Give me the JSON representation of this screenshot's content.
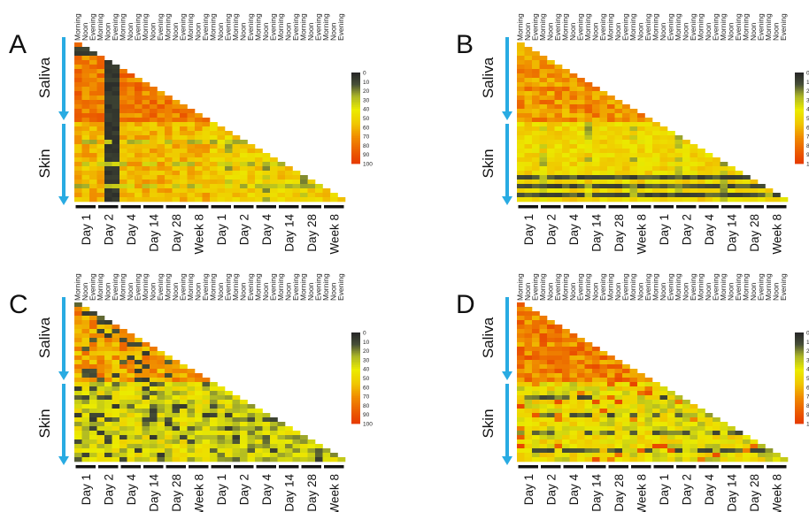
{
  "figure": {
    "panels": [
      {
        "letter": "A",
        "scale_max_visible_label": "100",
        "variant": "A"
      },
      {
        "letter": "B",
        "scale_max_visible_label": "10",
        "variant": "B"
      },
      {
        "letter": "C",
        "scale_max_visible_label": "100",
        "variant": "C"
      },
      {
        "letter": "D",
        "scale_max_visible_label": "10",
        "variant": "D"
      }
    ],
    "group_labels": {
      "saliva": "Saliva",
      "skin": "Skin"
    },
    "column_labels": [
      "Morning",
      "Noon",
      "Evening",
      "Morning",
      "Noon",
      "Evening",
      "Morning",
      "Noon",
      "Evening",
      "Morning",
      "Noon",
      "Evening",
      "Morning",
      "Noon",
      "Evening",
      "Morning",
      "Noon",
      "Evening",
      "Morning",
      "Noon",
      "Evening",
      "Morning",
      "Noon",
      "Evening",
      "Morning",
      "Noon",
      "Evening",
      "Morning",
      "Noon",
      "Evening",
      "Morning",
      "Noon",
      "Evening",
      "Morning",
      "Noon",
      "Evening"
    ],
    "day_labels": [
      "Day 1",
      "Day 2",
      "Day 4",
      "Day 14",
      "Day 28",
      "Week 8",
      "Day 1",
      "Day 2",
      "Day 4",
      "Day 14",
      "Day 28",
      "Week 8"
    ],
    "colorbar_ticks": [
      "0",
      "10",
      "20",
      "30",
      "40",
      "50",
      "60",
      "70",
      "80",
      "90",
      "100"
    ]
  },
  "chart_data": [
    {
      "type": "heatmap",
      "panel": "A",
      "title": "",
      "row_groups": [
        "Saliva",
        "Skin"
      ],
      "columns": 36,
      "color_scale": {
        "min": 0,
        "max": 100,
        "low_color": "#1a1a1a",
        "mid_color": "#e6e600",
        "high_color": "#e63900"
      },
      "note_highlight": "Day 2 Morning column near 0"
    },
    {
      "type": "heatmap",
      "panel": "B",
      "title": "",
      "row_groups": [
        "Saliva",
        "Skin"
      ],
      "columns": 36,
      "color_scale": {
        "min": 0,
        "max": 100,
        "low_color": "#1a1a1a",
        "mid_color": "#e6e600",
        "high_color": "#e63900"
      }
    },
    {
      "type": "heatmap",
      "panel": "C",
      "title": "",
      "row_groups": [
        "Saliva",
        "Skin"
      ],
      "columns": 36,
      "color_scale": {
        "min": 0,
        "max": 100,
        "low_color": "#1a1a1a",
        "mid_color": "#e6e600",
        "high_color": "#e63900"
      }
    },
    {
      "type": "heatmap",
      "panel": "D",
      "title": "",
      "row_groups": [
        "Saliva",
        "Skin"
      ],
      "columns": 36,
      "color_scale": {
        "min": 0,
        "max": 100,
        "low_color": "#1a1a1a",
        "mid_color": "#e6e600",
        "high_color": "#e63900"
      }
    }
  ],
  "colors": {
    "arrow": "#29abe2",
    "high": "#e63900",
    "mid": "#e6e600",
    "low": "#1a1a1a"
  }
}
